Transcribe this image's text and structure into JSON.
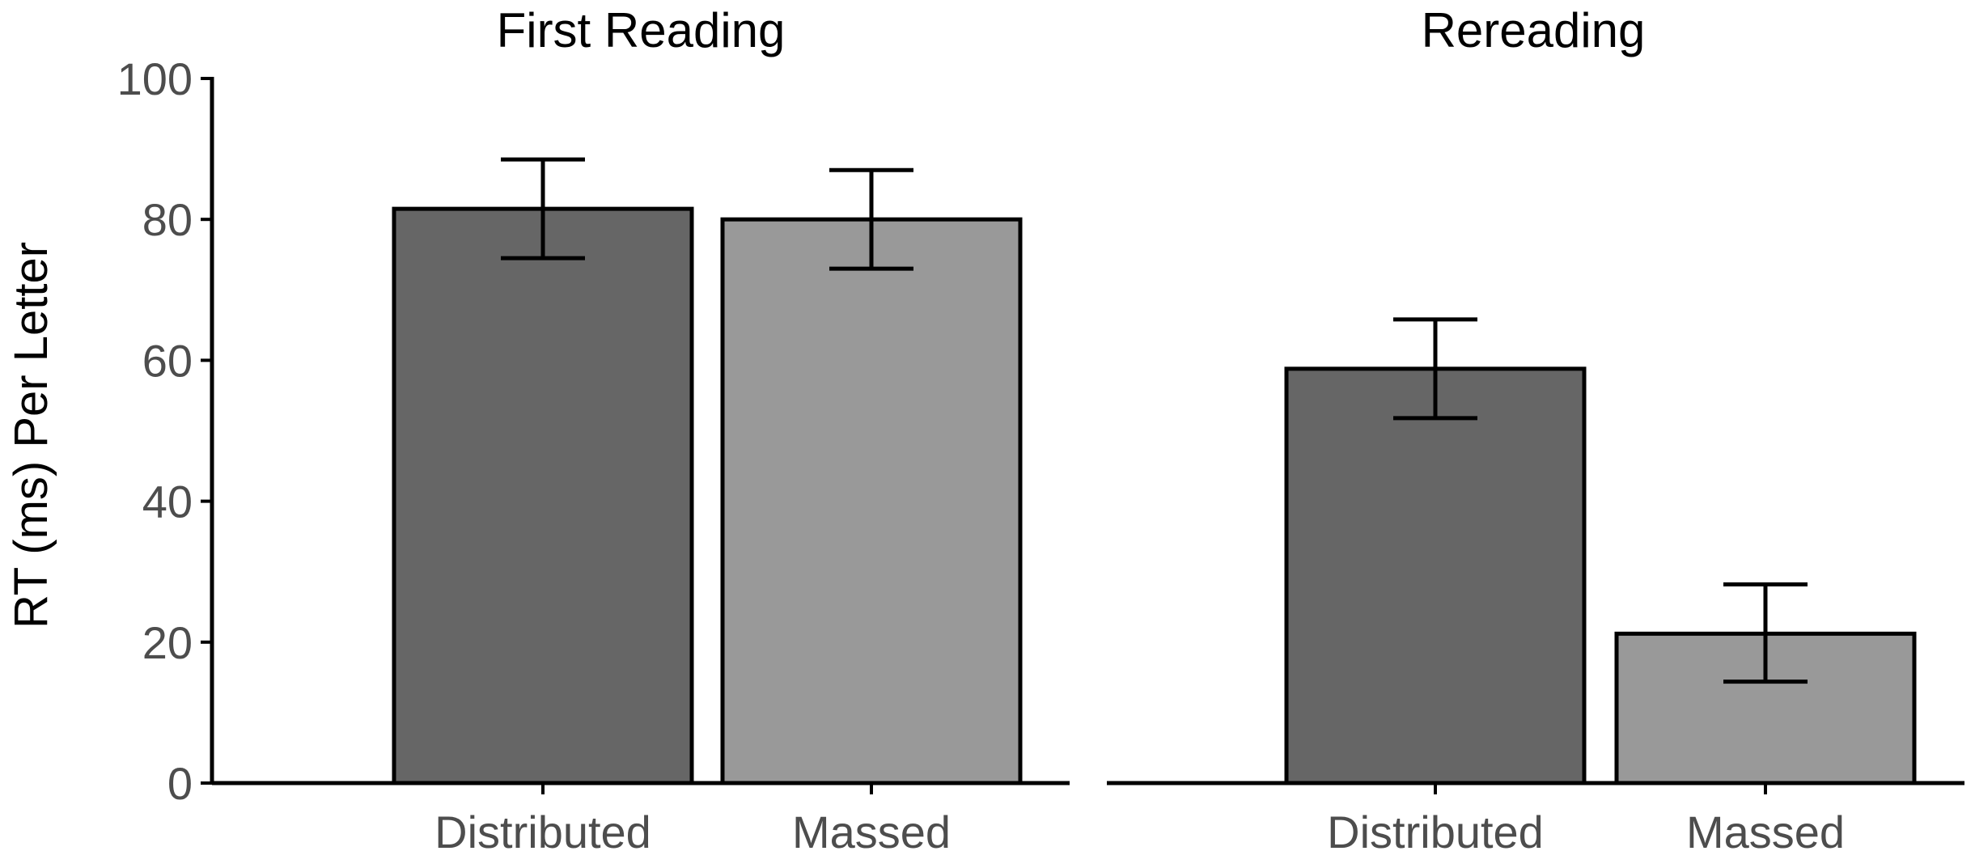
{
  "chart_data": {
    "type": "bar",
    "ylabel": "RT (ms) Per Letter",
    "ylim": [
      0,
      100
    ],
    "yticks": [
      0,
      20,
      40,
      60,
      80,
      100
    ],
    "grid": false,
    "categories": [
      "Distributed",
      "Massed"
    ],
    "colors": {
      "Distributed": "#666666",
      "Massed": "#999999"
    },
    "panels": [
      {
        "title": "First Reading",
        "values": [
          81.5,
          80.0
        ],
        "errors": [
          {
            "low": 74.5,
            "high": 88.5
          },
          {
            "low": 73.0,
            "high": 87.0
          }
        ]
      },
      {
        "title": "Rereading",
        "values": [
          58.8,
          21.2
        ],
        "errors": [
          {
            "low": 51.8,
            "high": 65.8
          },
          {
            "low": 14.4,
            "high": 28.2
          }
        ]
      }
    ]
  }
}
